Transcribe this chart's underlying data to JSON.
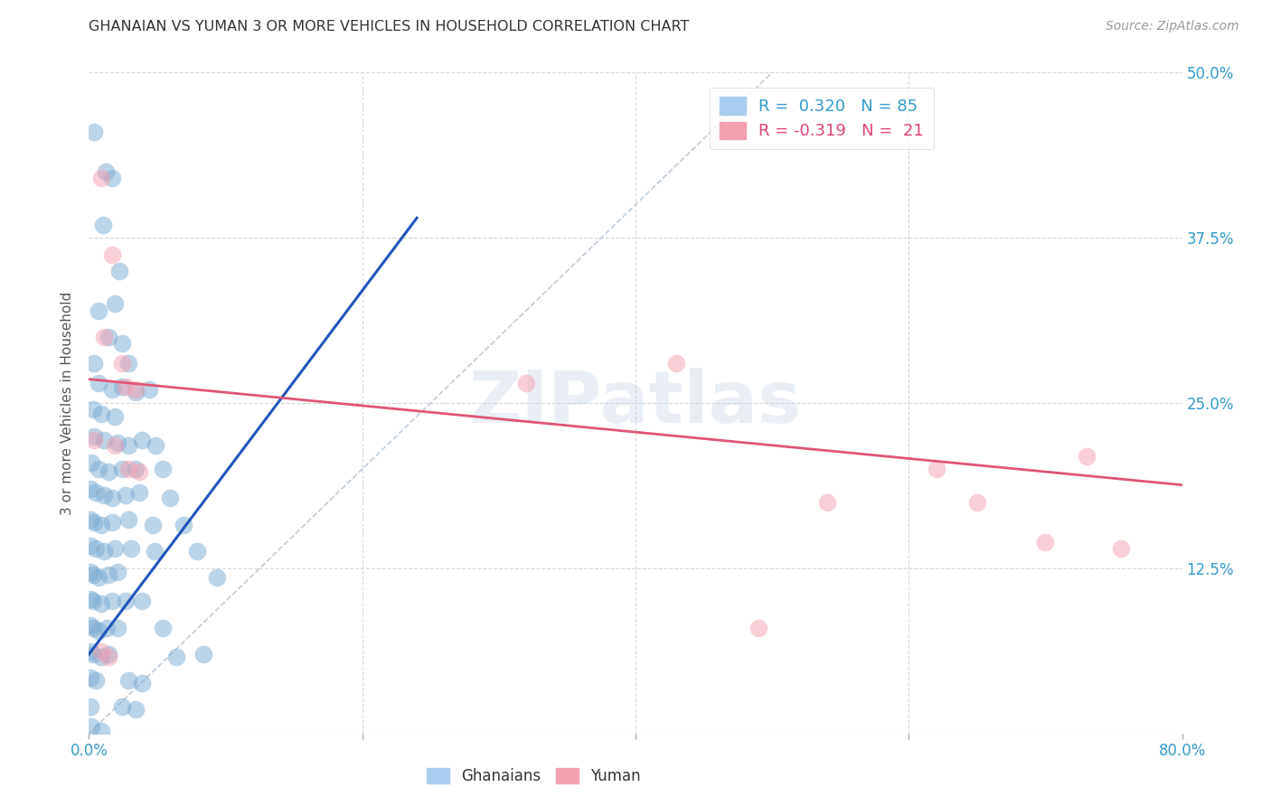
{
  "title": "GHANAIAN VS YUMAN 3 OR MORE VEHICLES IN HOUSEHOLD CORRELATION CHART",
  "source": "Source: ZipAtlas.com",
  "ylabel": "3 or more Vehicles in Household",
  "xlim": [
    0.0,
    0.8
  ],
  "ylim": [
    0.0,
    0.5
  ],
  "xticks": [
    0.0,
    0.2,
    0.4,
    0.6,
    0.8
  ],
  "xticklabels": [
    "0.0%",
    "",
    "",
    "",
    "80.0%"
  ],
  "yticks": [
    0.0,
    0.125,
    0.25,
    0.375,
    0.5
  ],
  "yticklabels": [
    "",
    "12.5%",
    "25.0%",
    "37.5%",
    "50.0%"
  ],
  "blue_color": "#7aaad0",
  "pink_color": "#f4a0b0",
  "blue_line_color": "#2255bb",
  "pink_line_color": "#e05575",
  "diagonal_color": "#b0bfd0",
  "watermark": "ZIPatlas",
  "blue_dots": [
    [
      0.004,
      0.455
    ],
    [
      0.012,
      0.425
    ],
    [
      0.017,
      0.42
    ],
    [
      0.01,
      0.385
    ],
    [
      0.022,
      0.35
    ],
    [
      0.007,
      0.32
    ],
    [
      0.019,
      0.325
    ],
    [
      0.014,
      0.3
    ],
    [
      0.024,
      0.295
    ],
    [
      0.004,
      0.28
    ],
    [
      0.029,
      0.28
    ],
    [
      0.007,
      0.265
    ],
    [
      0.017,
      0.26
    ],
    [
      0.024,
      0.262
    ],
    [
      0.034,
      0.258
    ],
    [
      0.044,
      0.26
    ],
    [
      0.003,
      0.245
    ],
    [
      0.009,
      0.242
    ],
    [
      0.019,
      0.24
    ],
    [
      0.004,
      0.225
    ],
    [
      0.011,
      0.222
    ],
    [
      0.021,
      0.22
    ],
    [
      0.029,
      0.218
    ],
    [
      0.039,
      0.222
    ],
    [
      0.002,
      0.205
    ],
    [
      0.007,
      0.2
    ],
    [
      0.014,
      0.198
    ],
    [
      0.024,
      0.2
    ],
    [
      0.034,
      0.2
    ],
    [
      0.001,
      0.185
    ],
    [
      0.005,
      0.182
    ],
    [
      0.011,
      0.18
    ],
    [
      0.017,
      0.178
    ],
    [
      0.027,
      0.18
    ],
    [
      0.037,
      0.182
    ],
    [
      0.001,
      0.162
    ],
    [
      0.004,
      0.16
    ],
    [
      0.009,
      0.158
    ],
    [
      0.017,
      0.16
    ],
    [
      0.029,
      0.162
    ],
    [
      0.001,
      0.142
    ],
    [
      0.005,
      0.14
    ],
    [
      0.011,
      0.138
    ],
    [
      0.019,
      0.14
    ],
    [
      0.031,
      0.14
    ],
    [
      0.048,
      0.138
    ],
    [
      0.001,
      0.122
    ],
    [
      0.003,
      0.12
    ],
    [
      0.007,
      0.118
    ],
    [
      0.014,
      0.12
    ],
    [
      0.021,
      0.122
    ],
    [
      0.001,
      0.102
    ],
    [
      0.003,
      0.1
    ],
    [
      0.009,
      0.098
    ],
    [
      0.017,
      0.1
    ],
    [
      0.027,
      0.1
    ],
    [
      0.001,
      0.082
    ],
    [
      0.003,
      0.08
    ],
    [
      0.007,
      0.078
    ],
    [
      0.013,
      0.08
    ],
    [
      0.021,
      0.08
    ],
    [
      0.001,
      0.062
    ],
    [
      0.003,
      0.06
    ],
    [
      0.009,
      0.058
    ],
    [
      0.014,
      0.06
    ],
    [
      0.001,
      0.042
    ],
    [
      0.005,
      0.04
    ],
    [
      0.001,
      0.02
    ],
    [
      0.002,
      0.005
    ],
    [
      0.009,
      0.002
    ],
    [
      0.049,
      0.218
    ],
    [
      0.054,
      0.2
    ],
    [
      0.059,
      0.178
    ],
    [
      0.047,
      0.158
    ],
    [
      0.069,
      0.158
    ],
    [
      0.079,
      0.138
    ],
    [
      0.094,
      0.118
    ],
    [
      0.039,
      0.1
    ],
    [
      0.054,
      0.08
    ],
    [
      0.064,
      0.058
    ],
    [
      0.084,
      0.06
    ],
    [
      0.029,
      0.04
    ],
    [
      0.039,
      0.038
    ],
    [
      0.024,
      0.02
    ],
    [
      0.034,
      0.018
    ]
  ],
  "pink_dots": [
    [
      0.009,
      0.42
    ],
    [
      0.017,
      0.362
    ],
    [
      0.011,
      0.3
    ],
    [
      0.024,
      0.28
    ],
    [
      0.027,
      0.262
    ],
    [
      0.034,
      0.26
    ],
    [
      0.004,
      0.222
    ],
    [
      0.019,
      0.218
    ],
    [
      0.029,
      0.2
    ],
    [
      0.037,
      0.198
    ],
    [
      0.009,
      0.062
    ],
    [
      0.014,
      0.058
    ],
    [
      0.32,
      0.265
    ],
    [
      0.43,
      0.28
    ],
    [
      0.49,
      0.08
    ],
    [
      0.54,
      0.175
    ],
    [
      0.62,
      0.2
    ],
    [
      0.65,
      0.175
    ],
    [
      0.7,
      0.145
    ],
    [
      0.73,
      0.21
    ],
    [
      0.755,
      0.14
    ]
  ],
  "blue_line_x": [
    0.0,
    0.24
  ],
  "blue_line_y": [
    0.06,
    0.39
  ],
  "pink_line_x": [
    0.0,
    0.8
  ],
  "pink_line_y": [
    0.268,
    0.188
  ],
  "diag_line_x": [
    0.0,
    0.5
  ],
  "diag_line_y": [
    0.0,
    0.5
  ],
  "background_color": "#ffffff",
  "grid_color": "#cccccc",
  "tick_color": "#3399cc",
  "title_color": "#333333",
  "source_color": "#999999"
}
